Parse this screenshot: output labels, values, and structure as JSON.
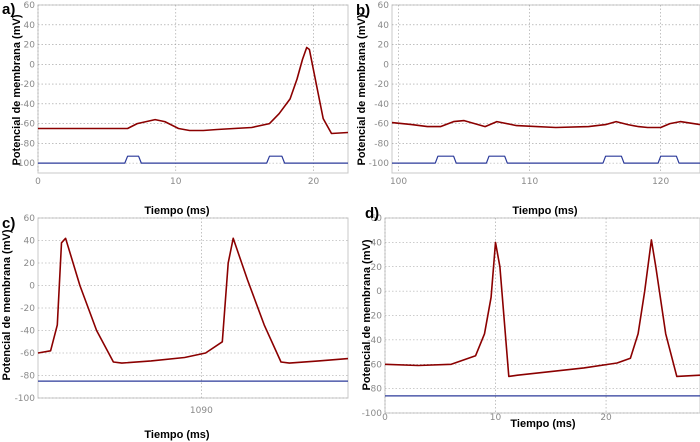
{
  "figure": {
    "panel_labels": [
      "a)",
      "b)",
      "c)",
      "d)"
    ]
  },
  "colors": {
    "voltage": "#8b0000",
    "stimulus": "#2b3a9a",
    "grid": "#9a9a9a",
    "frame": "#c8c8c8"
  },
  "chart_data": [
    {
      "id": "a",
      "type": "line",
      "panel_label": "a)",
      "xlabel": "Tiempo (ms)",
      "ylabel": "Potencial de membrana (mV)",
      "xlim": [
        0,
        22.5
      ],
      "ylim": [
        -110,
        60
      ],
      "xticks": [
        0,
        10,
        20
      ],
      "xtick_labels": [
        "0",
        "10",
        "20"
      ],
      "yticks": [
        60,
        40,
        20,
        0,
        -20,
        -40,
        -60,
        -80,
        -100
      ],
      "ytick_labels": [
        "60",
        "40",
        "20",
        "0",
        "-20",
        "-40",
        "-60",
        "-80",
        "-100"
      ],
      "grid": true,
      "series": [
        {
          "role": "voltage",
          "x": [
            0,
            6.5,
            7.2,
            8.5,
            9.2,
            10.2,
            11,
            12,
            13,
            15.5,
            16.8,
            17.5,
            18.3,
            18.8,
            19.2,
            19.5,
            19.7,
            20.2,
            20.7,
            21.3,
            22.5
          ],
          "y": [
            -65,
            -65,
            -60,
            -56,
            -58,
            -65,
            -67,
            -67,
            -66,
            -64,
            -60,
            -50,
            -35,
            -15,
            5,
            17,
            15,
            -20,
            -55,
            -70,
            -69
          ]
        },
        {
          "role": "stimulus",
          "x": [
            0,
            6.3,
            6.5,
            7.3,
            7.5,
            16.6,
            16.8,
            17.7,
            17.9,
            22.5
          ],
          "y": [
            -100,
            -100,
            -93,
            -93,
            -100,
            -100,
            -93,
            -93,
            -100,
            -100
          ]
        }
      ]
    },
    {
      "id": "b",
      "type": "line",
      "panel_label": "b)",
      "xlabel": "Tiempo (ms)",
      "ylabel": "Potencial de membrana (mV)",
      "xlim": [
        99.5,
        123
      ],
      "ylim": [
        -110,
        60
      ],
      "xticks": [
        100,
        110,
        120
      ],
      "xtick_labels": [
        "100",
        "110",
        "120"
      ],
      "yticks": [
        60,
        40,
        20,
        0,
        -20,
        -40,
        -60,
        -80,
        -100
      ],
      "ytick_labels": [
        "60",
        "40",
        "20",
        "0",
        "-20",
        "-40",
        "-60",
        "-80",
        "-100"
      ],
      "grid": true,
      "series": [
        {
          "role": "voltage",
          "x": [
            99.5,
            101,
            102.2,
            103.2,
            104.2,
            105,
            105.8,
            106.6,
            107.5,
            109,
            112,
            114.5,
            115.8,
            116.6,
            117.5,
            118.3,
            119,
            120,
            120.7,
            121.5,
            123
          ],
          "y": [
            -59,
            -61,
            -63,
            -63,
            -58,
            -57,
            -60,
            -63,
            -58,
            -62,
            -64,
            -63,
            -61,
            -58,
            -61,
            -63,
            -64,
            -64,
            -60,
            -58,
            -61
          ]
        },
        {
          "role": "stimulus",
          "x": [
            99.5,
            102.8,
            103,
            104.2,
            104.4,
            106.7,
            106.9,
            108.1,
            108.3,
            115.6,
            115.8,
            117,
            117.2,
            119.8,
            120,
            121.2,
            121.4,
            123
          ],
          "y": [
            -100,
            -100,
            -93,
            -93,
            -100,
            -100,
            -93,
            -93,
            -100,
            -100,
            -93,
            -93,
            -100,
            -100,
            -93,
            -93,
            -100,
            -100
          ]
        }
      ]
    },
    {
      "id": "c",
      "type": "line",
      "panel_label": "c)",
      "xlabel": "Tiempo (ms)",
      "ylabel": "Potencial de membrana (mV)",
      "xlim": [
        1070.5,
        1107.5
      ],
      "ylim": [
        -100,
        60
      ],
      "xticks": [
        1090
      ],
      "xtick_labels": [
        "1090"
      ],
      "yticks": [
        60,
        40,
        20,
        0,
        -20,
        -40,
        -60,
        -80,
        -100
      ],
      "ytick_labels": [
        "60",
        "40",
        "20",
        "0",
        "-20",
        "-40",
        "-60",
        "-80",
        "-100"
      ],
      "grid": true,
      "series": [
        {
          "role": "voltage",
          "x": [
            1070.5,
            1072,
            1072.8,
            1073.3,
            1073.8,
            1075.5,
            1077.5,
            1079.5,
            1080.5,
            1084,
            1088,
            1090.5,
            1092.5,
            1093.2,
            1093.8,
            1095.5,
            1097.5,
            1099.5,
            1100.5,
            1104,
            1107.5
          ],
          "y": [
            -60,
            -58,
            -35,
            38,
            42,
            0,
            -40,
            -68,
            -69,
            -67,
            -64,
            -60,
            -50,
            20,
            42,
            5,
            -35,
            -68,
            -69,
            -67,
            -65
          ]
        },
        {
          "role": "stimulus",
          "x": [
            1070.5,
            1107.5
          ],
          "y": [
            -85,
            -85
          ]
        }
      ]
    },
    {
      "id": "d",
      "type": "line",
      "panel_label": "d)",
      "xlabel": "Tiempo (ms)",
      "ylabel": "Potencial de membrana (mV)",
      "xlim": [
        0,
        28.5
      ],
      "ylim": [
        -100,
        60
      ],
      "xticks": [
        0,
        10,
        20
      ],
      "xtick_labels": [
        "0",
        "10",
        "20"
      ],
      "yticks": [
        60,
        40,
        20,
        0,
        -20,
        -40,
        -60,
        -80,
        -100
      ],
      "ytick_labels": [
        "60",
        "40",
        "20",
        "0",
        "-20",
        "-40",
        "-60",
        "-80",
        "-100"
      ],
      "grid": true,
      "series": [
        {
          "role": "voltage",
          "x": [
            0,
            3,
            6,
            8.2,
            9,
            9.6,
            10,
            10.4,
            11.2,
            12,
            15,
            18,
            21,
            22.2,
            22.9,
            23.5,
            24.1,
            24.5,
            25.4,
            26.4,
            28.5
          ],
          "y": [
            -60,
            -61,
            -60,
            -53,
            -35,
            -5,
            40,
            20,
            -70,
            -69,
            -66,
            -63,
            -59,
            -55,
            -35,
            0,
            42,
            20,
            -35,
            -70,
            -69
          ]
        },
        {
          "role": "stimulus",
          "x": [
            0,
            28.5
          ],
          "y": [
            -86,
            -86
          ]
        }
      ]
    }
  ]
}
